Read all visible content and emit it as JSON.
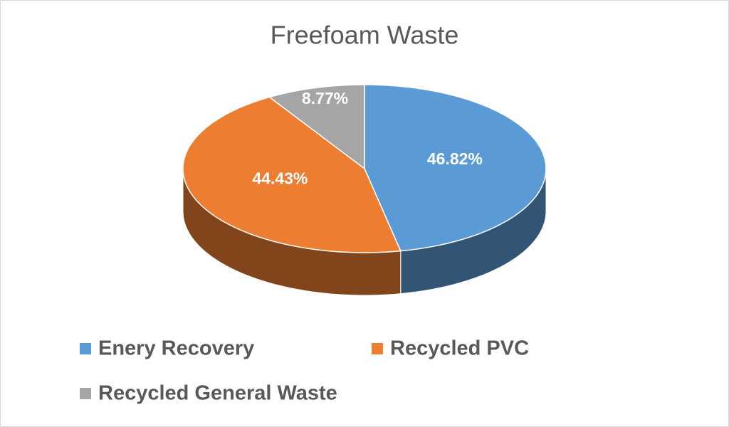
{
  "chart_data": {
    "type": "pie3d",
    "title": "Freefoam Waste",
    "categories": [
      "Enery Recovery",
      "Recycled PVC",
      "Recycled General Waste"
    ],
    "values": [
      46.82,
      44.43,
      8.77
    ],
    "value_labels": [
      "46.82%",
      "44.43%",
      "8.77%"
    ],
    "colors": [
      "#5b9bd5",
      "#ed7d31",
      "#a5a5a5"
    ],
    "legend": "bottom"
  }
}
